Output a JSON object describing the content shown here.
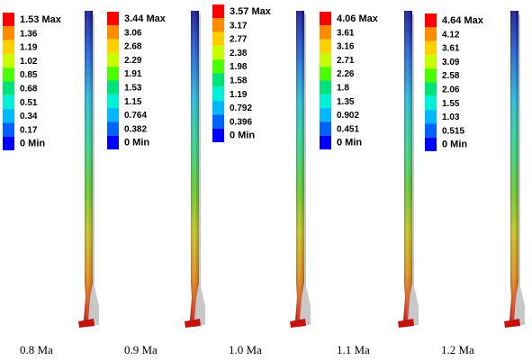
{
  "panels": [
    {
      "caption": "0.8 Ma",
      "legend": [
        "1.53 Max",
        "1.36",
        "1.19",
        "1.02",
        "0.85",
        "0.68",
        "0.51",
        "0.34",
        "0.17",
        "0 Min"
      ]
    },
    {
      "caption": "0.9 Ma",
      "legend": [
        "3.44 Max",
        "3.06",
        "2.68",
        "2.29",
        "1.91",
        "1.53",
        "1.15",
        "0.764",
        "0.382",
        "0 Min"
      ]
    },
    {
      "caption": "1.0 Ma",
      "legend": [
        "3.57 Max",
        "3.17",
        "2.77",
        "2.38",
        "1.98",
        "1.58",
        "1.19",
        "0.792",
        "0.396",
        "0 Min"
      ]
    },
    {
      "caption": "1.1 Ma",
      "legend": [
        "4.06 Max",
        "3.61",
        "3.16",
        "2.71",
        "2.26",
        "1.8",
        "1.35",
        "0.902",
        "0.451",
        "0 Min"
      ]
    },
    {
      "caption": "1.2 Ma",
      "legend": [
        "4.64 Max",
        "4.12",
        "3.61",
        "3.09",
        "2.58",
        "2.06",
        "1.55",
        "1.03",
        "0.515",
        "0 Min"
      ]
    }
  ],
  "colors": {
    "legend_scale": [
      "#ff0000",
      "#ff8c00",
      "#ffd000",
      "#c8ff00",
      "#4cff00",
      "#00e27a",
      "#00f0d8",
      "#00b8ff",
      "#0062ff",
      "#0000ff"
    ],
    "column_ramp": [
      "#0b0b8e",
      "#1a5fd6",
      "#20b7d8",
      "#2ed38a",
      "#5cc92a",
      "#c6c21a",
      "#e08a12",
      "#d8100a"
    ],
    "shadow": "#c8c8c8"
  }
}
